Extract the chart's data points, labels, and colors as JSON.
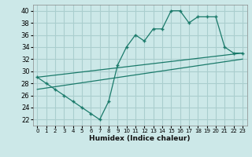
{
  "title": "",
  "xlabel": "Humidex (Indice chaleur)",
  "bg_color": "#cce8e8",
  "grid_color": "#aacece",
  "line_color": "#1a7a6a",
  "xlim": [
    -0.5,
    23.5
  ],
  "ylim": [
    21,
    41
  ],
  "yticks": [
    22,
    24,
    26,
    28,
    30,
    32,
    34,
    36,
    38,
    40
  ],
  "xticks": [
    0,
    1,
    2,
    3,
    4,
    5,
    6,
    7,
    8,
    9,
    10,
    11,
    12,
    13,
    14,
    15,
    16,
    17,
    18,
    19,
    20,
    21,
    22,
    23
  ],
  "series1_x": [
    0,
    1,
    2,
    3,
    4,
    5,
    6,
    7,
    8,
    9,
    10,
    11,
    12,
    13,
    14,
    15,
    16,
    17,
    18,
    19,
    20,
    21,
    22,
    23
  ],
  "series1_y": [
    29,
    28,
    27,
    26,
    25,
    24,
    23,
    22,
    25,
    31,
    34,
    36,
    35,
    37,
    37,
    40,
    40,
    38,
    39,
    39,
    39,
    34,
    33,
    33
  ],
  "series2_x": [
    0,
    23
  ],
  "series2_y": [
    29,
    33
  ],
  "series3_x": [
    0,
    23
  ],
  "series3_y": [
    27,
    32
  ]
}
